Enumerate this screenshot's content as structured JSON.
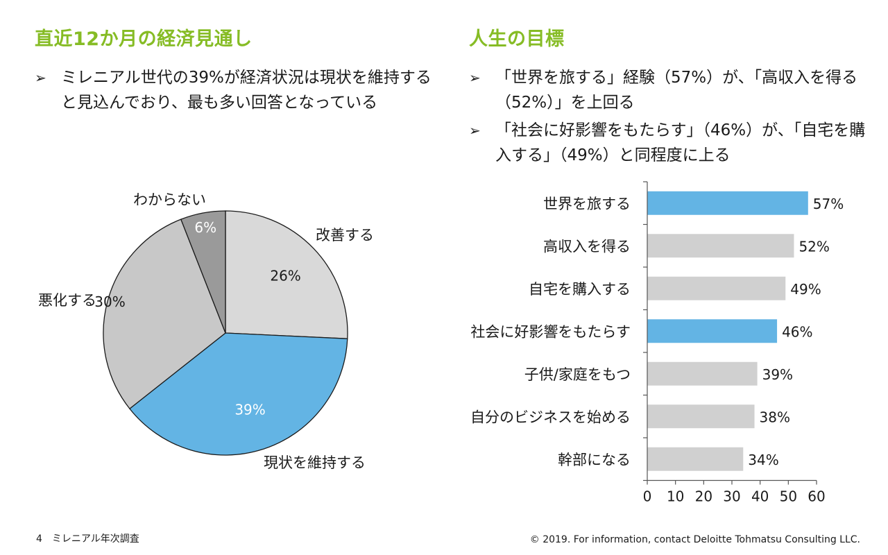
{
  "left": {
    "title": "直近12か月の経済見通し",
    "bullets": [
      "ミレニアル世代の39%が経済状況は現状を維持すると見込んでおり、最も多い回答となっている"
    ]
  },
  "right": {
    "title": "人生の目標",
    "bullets": [
      "「世界を旅する」経験（57%）が、「高収入を得る（52%）」を上回る",
      "「社会に好影響をもたらす」（46%）が、「自宅を購入する」（49%）と同程度に上る"
    ]
  },
  "footer": {
    "page": "4　ミレニアル年次調査",
    "copyright": "© 2019. For information, contact Deloitte Tohmatsu Consulting LLC."
  },
  "bullet_icon": "arrowhead-bullet-icon",
  "colors": {
    "title_green": "#86bc25",
    "highlight_blue": "#63b4e4",
    "gray": "#d0d0d0",
    "light_gray_pie": "#d9d9d9",
    "mid_gray_pie": "#c8c8c8",
    "dark_gray_pie": "#9a9a9a"
  },
  "chart_data": [
    {
      "type": "pie",
      "slices": [
        {
          "label": "改善する",
          "value": 26,
          "value_label": "26%",
          "color": "#d9d9d9"
        },
        {
          "label": "現状を維持する",
          "value": 39,
          "value_label": "39%",
          "color": "#63b4e4"
        },
        {
          "label": "悪化する",
          "value": 30,
          "value_label": "30%",
          "color": "#c8c8c8"
        },
        {
          "label": "わからない",
          "value": 6,
          "value_label": "6%",
          "color": "#9a9a9a"
        }
      ]
    },
    {
      "type": "bar",
      "orientation": "horizontal",
      "categories": [
        "世界を旅する",
        "高収入を得る",
        "自宅を購入する",
        "社会に好影響をもたらす",
        "子供/家庭をもつ",
        "自分のビジネスを始める",
        "幹部になる"
      ],
      "values": [
        57,
        52,
        49,
        46,
        39,
        38,
        34
      ],
      "value_labels": [
        "57%",
        "52%",
        "49%",
        "46%",
        "39%",
        "38%",
        "34%"
      ],
      "highlight": [
        true,
        false,
        false,
        true,
        false,
        false,
        false
      ],
      "xlim": [
        0,
        60
      ],
      "xticks": [
        "0",
        "10",
        "20",
        "30",
        "40",
        "50",
        "60"
      ]
    }
  ]
}
